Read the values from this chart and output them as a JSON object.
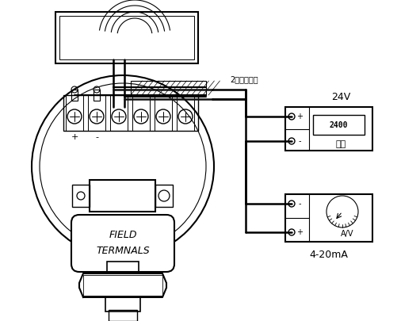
{
  "bg_color": "#ffffff",
  "line_color": "#000000",
  "label_2wire": "2线不分极性",
  "label_24v": "24V",
  "label_power": "电源",
  "label_power_val": "2400",
  "label_ammeter": "4-20mA",
  "label_ammeter_unit": "A/V",
  "label_field1": "FIELD",
  "label_field2": "TERMNALS",
  "label_plus": "+",
  "label_minus": "-",
  "figsize": [
    5.3,
    4.05
  ],
  "dpi": 100
}
